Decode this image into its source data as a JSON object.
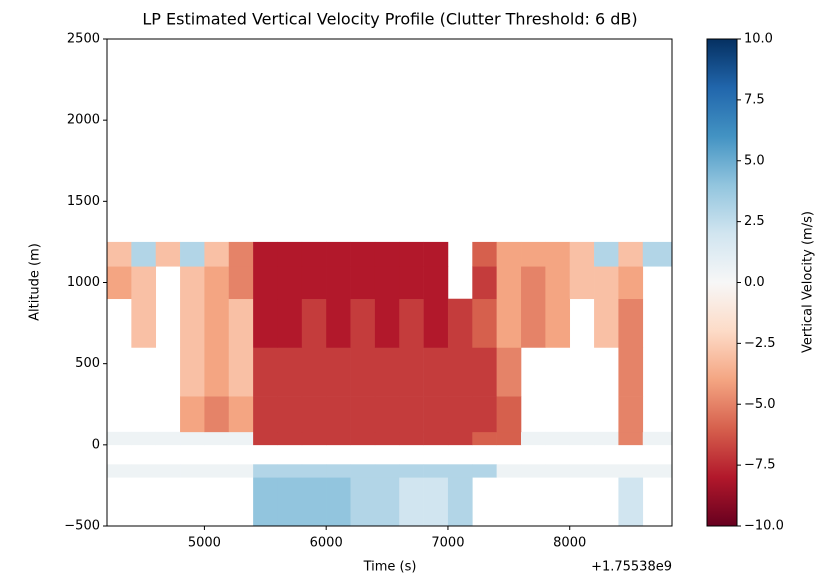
{
  "chart_data": {
    "type": "heatmap",
    "title": "LP Estimated Vertical Velocity Profile (Clutter Threshold: 6 dB)",
    "x_label": "Time (s)",
    "y_label": "Altitude (m)",
    "x_offset_label": "+1.75538e9",
    "colorbar_label": "Vertical Velocity (m/s)",
    "xlim": [
      4200,
      8840
    ],
    "ylim": [
      -500,
      2500
    ],
    "xticks": [
      5000,
      6000,
      7000,
      8000
    ],
    "yticks": [
      {
        "value": -500,
        "label": "−500"
      },
      0,
      500,
      1000,
      1500,
      2000,
      2500
    ],
    "vlim": [
      -10,
      10
    ],
    "cticks": [
      {
        "value": -10,
        "label": "−10.0"
      },
      {
        "value": -7.5,
        "label": "−7.5"
      },
      {
        "value": -5,
        "label": "−5.0"
      },
      {
        "value": -2.5,
        "label": "−2.5"
      },
      {
        "value": 0,
        "label": "0.0"
      },
      {
        "value": 2.5,
        "label": "2.5"
      },
      {
        "value": 5,
        "label": "5.0"
      },
      {
        "value": 7.5,
        "label": "7.5"
      },
      {
        "value": 10,
        "label": "10.0"
      }
    ],
    "colorscale": [
      "#67001f",
      "#b2182b",
      "#d6604d",
      "#f4a582",
      "#fddbc7",
      "#f7f7f7",
      "#d1e5f0",
      "#92c5de",
      "#4393c3",
      "#2166ac",
      "#053061"
    ],
    "x_edges": [
      4200,
      4400,
      4600,
      4800,
      5000,
      5200,
      5400,
      5600,
      5800,
      6000,
      6200,
      6400,
      6600,
      6800,
      7000,
      7200,
      7400,
      7600,
      7800,
      8000,
      8200,
      8400,
      8600,
      8840
    ],
    "y_edges": [
      -500,
      -200,
      -120,
      0,
      80,
      300,
      600,
      900,
      1100,
      1250
    ],
    "z": [
      [
        null,
        null,
        null,
        null,
        null,
        null,
        4,
        4,
        4,
        4,
        3,
        3,
        2,
        2,
        3,
        null,
        null,
        null,
        null,
        null,
        null,
        2,
        null
      ],
      [
        0.5,
        0.5,
        0.5,
        0.5,
        0.5,
        0.5,
        3,
        3,
        3,
        3,
        3,
        3,
        3,
        3,
        3,
        3,
        0.5,
        0.5,
        0.5,
        0.5,
        0.5,
        0.5,
        0.5
      ],
      [
        null,
        null,
        null,
        null,
        null,
        null,
        null,
        null,
        null,
        null,
        null,
        null,
        null,
        null,
        null,
        null,
        null,
        null,
        null,
        null,
        null,
        null,
        null
      ],
      [
        0.5,
        0.5,
        0.5,
        0.5,
        0.5,
        0.5,
        -7,
        -7,
        -7,
        -7,
        -7,
        -7,
        -7,
        -7,
        -7,
        -6,
        -6,
        0.5,
        0.5,
        0.5,
        0.5,
        -5,
        0.5
      ],
      [
        null,
        null,
        null,
        -4,
        -5,
        -4,
        -7,
        -7,
        -7,
        -7,
        -7,
        -7,
        -7,
        -7,
        -7,
        -7,
        -6,
        null,
        null,
        null,
        null,
        -5,
        null
      ],
      [
        null,
        null,
        null,
        -3,
        -4,
        -3,
        -7,
        -7,
        -7,
        -7,
        -7,
        -7,
        -7,
        -7,
        -7,
        -7,
        -5,
        null,
        null,
        null,
        null,
        -5,
        null
      ],
      [
        null,
        -3,
        null,
        -3,
        -4,
        -3,
        -8,
        -8,
        -7,
        -8,
        -7,
        -8,
        -7,
        -8,
        -7,
        -6,
        -4,
        -5,
        -4,
        null,
        -3,
        -5,
        null
      ],
      [
        -4,
        -3,
        null,
        -3,
        -4,
        -5,
        -8,
        -8,
        -8,
        -8,
        -8,
        -8,
        -8,
        -8,
        null,
        -7,
        -4,
        -5,
        -4,
        -3,
        -3,
        -4,
        null
      ],
      [
        -3,
        3,
        -3,
        3,
        -3,
        -5,
        -8,
        -8,
        -8,
        -8,
        -8,
        -8,
        -8,
        -8,
        null,
        -6,
        -4,
        -4,
        -4,
        -3,
        3,
        -3,
        3
      ]
    ]
  }
}
